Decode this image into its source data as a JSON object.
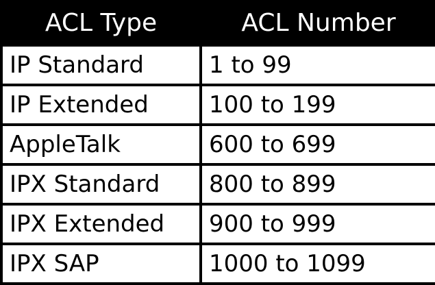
{
  "table": {
    "headers": [
      "ACL Type",
      "ACL Number"
    ],
    "rows": [
      [
        "IP Standard",
        "1 to 99"
      ],
      [
        "IP Extended",
        "100 to 199"
      ],
      [
        "AppleTalk",
        "600 to 699"
      ],
      [
        "IPX Standard",
        "800 to 899"
      ],
      [
        "IPX Extended",
        "900 to 999"
      ],
      [
        "IPX SAP",
        "1000 to 1099"
      ]
    ]
  }
}
